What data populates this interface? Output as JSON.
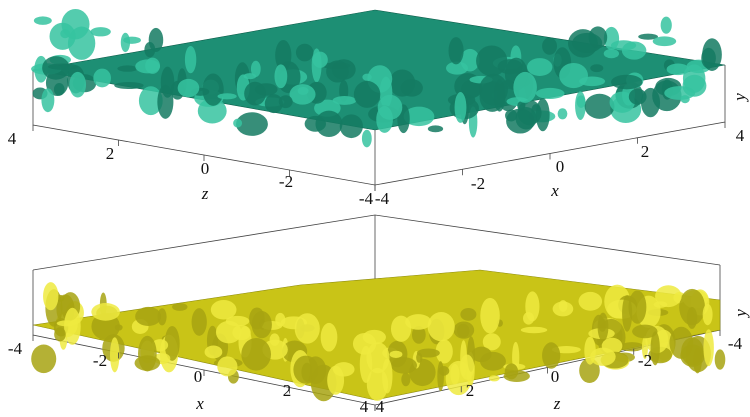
{
  "panels": [
    {
      "left_axis": {
        "label": "z",
        "ticks": [
          4,
          2,
          0,
          -2,
          -4
        ]
      },
      "right_axis": {
        "label": "x",
        "ticks": [
          -4,
          -2,
          0,
          2,
          4
        ]
      },
      "vertical_axis": {
        "label": "y"
      }
    },
    {
      "left_axis": {
        "label": "x",
        "ticks": [
          -4,
          -2,
          0,
          2,
          4
        ]
      },
      "right_axis": {
        "label": "z",
        "ticks": [
          4,
          2,
          0,
          -2,
          -4
        ]
      },
      "vertical_axis": {
        "label": "y"
      }
    }
  ]
}
